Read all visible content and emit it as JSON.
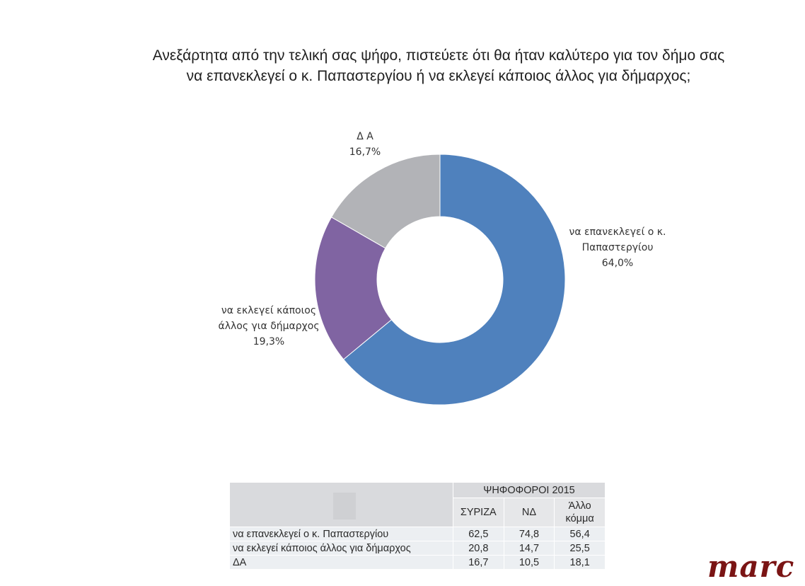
{
  "title": {
    "line1": "Ανεξάρτητα από την τελική σας ψήφο, πιστεύετε ότι θα ήταν καλύτερο για τον δήμο σας",
    "line2": "να επανεκλεγεί ο κ. Παπαστεργίου ή να εκλεγεί κάποιος άλλος για δήμαρχος;"
  },
  "chart_data": {
    "type": "pie",
    "style": "donut",
    "slices": [
      {
        "label_lines": [
          "να επανεκλεγεί ο κ.",
          "Παπαστεργίου"
        ],
        "value_text": "64,0%",
        "value": 64.0,
        "color": "#4f81bd"
      },
      {
        "label_lines": [
          "να εκλεγεί κάποιος",
          "άλλος για δήμαρχος"
        ],
        "value_text": "19,3%",
        "value": 19.3,
        "color": "#8064a2"
      },
      {
        "label_lines": [
          "Δ Α"
        ],
        "value_text": "16,7%",
        "value": 16.7,
        "color": "#b2b3b7"
      }
    ]
  },
  "table": {
    "group_header": "ΨΗΦΟΦΟΡΟΙ 2015",
    "columns": [
      "ΣΥΡΙΖΑ",
      "ΝΔ",
      "Άλλο κόμμα"
    ],
    "rows": [
      {
        "label": "να επανεκλεγεί ο κ.  Παπαστεργίου",
        "values": [
          "62,5",
          "74,8",
          "56,4"
        ]
      },
      {
        "label": "να εκλεγεί κάποιος άλλος για δήμαρχος",
        "values": [
          "20,8",
          "14,7",
          "25,5"
        ]
      },
      {
        "label": "ΔΑ",
        "values": [
          "16,7",
          "10,5",
          "18,1"
        ]
      }
    ]
  },
  "logo": {
    "text": "marc",
    "color": "#7a1414"
  }
}
